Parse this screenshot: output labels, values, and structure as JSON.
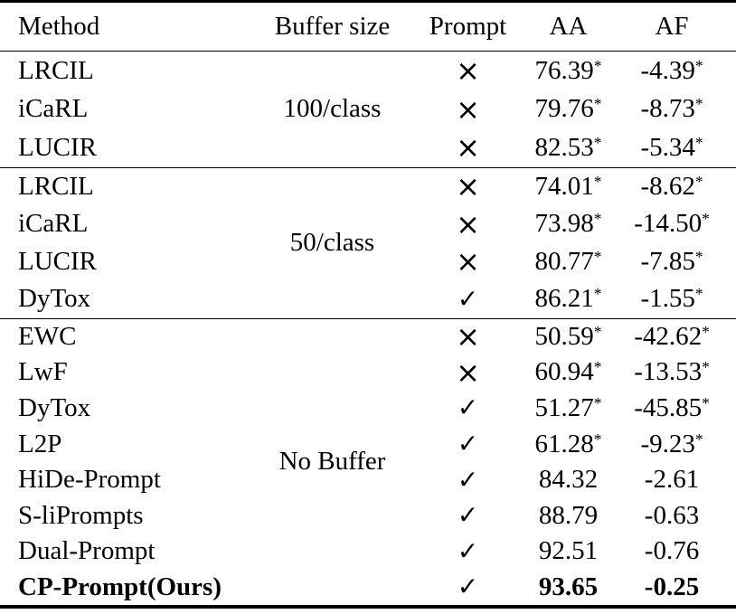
{
  "table": {
    "columns": [
      "Method",
      "Buffer size",
      "Prompt",
      "AA",
      "AF"
    ],
    "marks": {
      "cross": "×",
      "check": "✓"
    },
    "groups": [
      {
        "buffer_size": "100/class",
        "rows": [
          {
            "method": "LRCIL",
            "prompt_icon": "cross-icon",
            "prompt": "×",
            "aa": "76.39",
            "aa_sup": "*",
            "af": "-4.39",
            "af_sup": "*"
          },
          {
            "method": "iCaRL",
            "prompt_icon": "cross-icon",
            "prompt": "×",
            "aa": "79.76",
            "aa_sup": "*",
            "af": "-8.73",
            "af_sup": "*"
          },
          {
            "method": "LUCIR",
            "prompt_icon": "cross-icon",
            "prompt": "×",
            "aa": "82.53",
            "aa_sup": "*",
            "af": "-5.34",
            "af_sup": "*"
          }
        ]
      },
      {
        "buffer_size": "50/class",
        "rows": [
          {
            "method": "LRCIL",
            "prompt_icon": "cross-icon",
            "prompt": "×",
            "aa": "74.01",
            "aa_sup": "*",
            "af": "-8.62",
            "af_sup": "*"
          },
          {
            "method": "iCaRL",
            "prompt_icon": "cross-icon",
            "prompt": "×",
            "aa": "73.98",
            "aa_sup": "*",
            "af": "-14.50",
            "af_sup": "*"
          },
          {
            "method": "LUCIR",
            "prompt_icon": "cross-icon",
            "prompt": "×",
            "aa": "80.77",
            "aa_sup": "*",
            "af": "-7.85",
            "af_sup": "*"
          },
          {
            "method": "DyTox",
            "prompt_icon": "check-icon",
            "prompt": "✓",
            "aa": "86.21",
            "aa_sup": "*",
            "af": "-1.55",
            "af_sup": "*"
          }
        ]
      },
      {
        "buffer_size": "No Buffer",
        "rows": [
          {
            "method": "EWC",
            "prompt_icon": "cross-icon",
            "prompt": "×",
            "aa": "50.59",
            "aa_sup": "*",
            "af": "-42.62",
            "af_sup": "*"
          },
          {
            "method": "LwF",
            "prompt_icon": "cross-icon",
            "prompt": "×",
            "aa": "60.94",
            "aa_sup": "*",
            "af": "-13.53",
            "af_sup": "*"
          },
          {
            "method": "DyTox",
            "prompt_icon": "check-icon",
            "prompt": "✓",
            "aa": "51.27",
            "aa_sup": "*",
            "af": "-45.85",
            "af_sup": "*"
          },
          {
            "method": "L2P",
            "prompt_icon": "check-icon",
            "prompt": "✓",
            "aa": "61.28",
            "aa_sup": "*",
            "af": "-9.23",
            "af_sup": "*"
          },
          {
            "method": "HiDe-Prompt",
            "prompt_icon": "check-icon",
            "prompt": "✓",
            "aa": "84.32",
            "af": "-2.61"
          },
          {
            "method": "S-liPrompts",
            "prompt_icon": "check-icon",
            "prompt": "✓",
            "aa": "88.79",
            "af": "-0.63"
          },
          {
            "method": "Dual-Prompt",
            "prompt_icon": "check-icon",
            "prompt": "✓",
            "aa": "92.51",
            "af": "-0.76"
          },
          {
            "method": "CP-Prompt(Ours)",
            "prompt_icon": "check-icon",
            "prompt": "✓",
            "aa": "93.65",
            "af": "-0.25",
            "emphasis": true
          }
        ]
      }
    ]
  }
}
